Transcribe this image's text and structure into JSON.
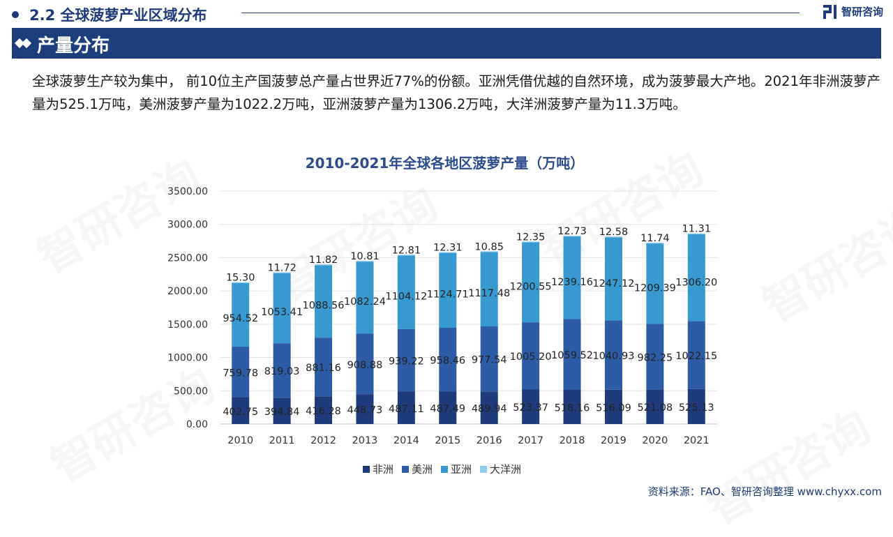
{
  "header": {
    "section_number_title": "2.2 全球菠萝产业区域分布",
    "brand": "智研咨询",
    "subsection_title": "产量分布"
  },
  "summary_text": "全球菠萝生产较为集中， 前10位主产国菠萝总产量占世界近77%的份额。亚洲凭借优越的自然环境，成为菠萝最大产地。2021年非洲菠萝产量为525.1万吨，美洲菠萝产量为1022.2万吨，亚洲菠萝产量为1306.2万吨，大洋洲菠萝产量为11.3万吨。",
  "source": "资料来源：FAO、智研咨询整理  www.chyxx.com",
  "watermark_text": "智研咨询",
  "colors": {
    "accent": "#1f3a7a",
    "africa": "#1f3b7b",
    "americas": "#2e5ba6",
    "asia": "#3899d0",
    "oceania": "#8fcbee"
  },
  "chart_data": {
    "type": "bar",
    "stacked": true,
    "title": "2010-2021年全球各地区菠萝产量（万吨）",
    "xlabel": "",
    "ylabel": "",
    "ylim": [
      0,
      3500
    ],
    "yticks": [
      "0.00",
      "500.00",
      "1000.00",
      "1500.00",
      "2000.00",
      "2500.00",
      "3000.00",
      "3500.00"
    ],
    "grid": true,
    "legend_position": "bottom",
    "categories": [
      "2010",
      "2011",
      "2012",
      "2013",
      "2014",
      "2015",
      "2016",
      "2017",
      "2018",
      "2019",
      "2020",
      "2021"
    ],
    "series": [
      {
        "name": "非洲",
        "color": "#1f3b7b",
        "values": [
          402.75,
          394.84,
          416.28,
          448.73,
          487.11,
          487.49,
          489.94,
          523.37,
          518.16,
          516.09,
          521.08,
          525.13
        ]
      },
      {
        "name": "美洲",
        "color": "#2e5ba6",
        "values": [
          759.78,
          819.03,
          881.16,
          908.88,
          939.22,
          958.46,
          977.54,
          1005.2,
          1059.52,
          1040.93,
          982.25,
          1022.15
        ]
      },
      {
        "name": "亚洲",
        "color": "#3899d0",
        "values": [
          954.52,
          1053.41,
          1088.56,
          1082.24,
          1104.12,
          1124.71,
          1117.48,
          1200.55,
          1239.16,
          1247.12,
          1209.39,
          1306.2
        ]
      },
      {
        "name": "大洋洲",
        "color": "#8fcbee",
        "values": [
          15.3,
          11.72,
          11.82,
          10.81,
          12.81,
          12.31,
          10.85,
          12.35,
          12.73,
          12.58,
          11.74,
          11.31
        ]
      }
    ]
  }
}
